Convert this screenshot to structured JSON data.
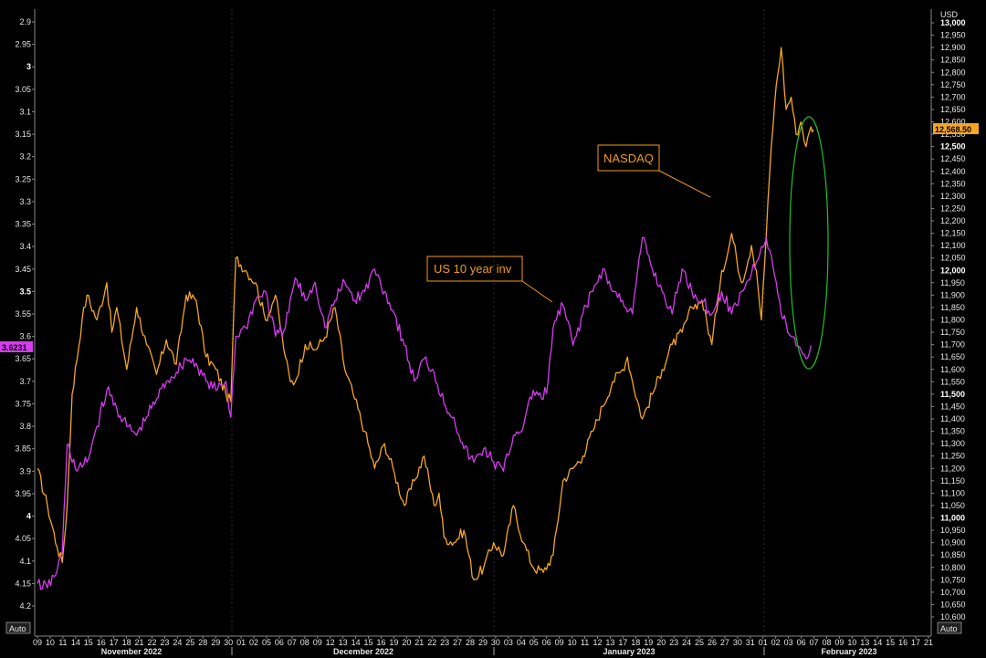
{
  "chart_data": {
    "type": "line",
    "title": "",
    "left_axis": {
      "label": "",
      "min": 2.88,
      "max": 4.22,
      "inverted": true,
      "ticks": [
        "2.9",
        "2.95",
        "3",
        "3.05",
        "3.1",
        "3.15",
        "3.2",
        "3.25",
        "3.3",
        "3.35",
        "3.4",
        "3.45",
        "3.5",
        "3.55",
        "3.6",
        "3.65",
        "3.7",
        "3.75",
        "3.8",
        "3.85",
        "3.9",
        "3.95",
        "4",
        "4.05",
        "4.1",
        "4.15",
        "4.2"
      ],
      "bold_ticks": [
        "3",
        "3.5",
        "4"
      ],
      "current_value_label": "3.6231",
      "current_value": 3.6231,
      "scale_button": "Auto"
    },
    "right_axis": {
      "unit": "USD",
      "min": 10570,
      "max": 13020,
      "ticks": [
        "13,000",
        "12,950",
        "12,900",
        "12,850",
        "12,800",
        "12,750",
        "12,700",
        "12,650",
        "12,600",
        "12,550",
        "12,500",
        "12,450",
        "12,400",
        "12,350",
        "12,300",
        "12,250",
        "12,200",
        "12,150",
        "12,100",
        "12,050",
        "12,000",
        "11,950",
        "11,900",
        "11,850",
        "11,800",
        "11,750",
        "11,700",
        "11,650",
        "11,600",
        "11,550",
        "11,500",
        "11,450",
        "11,400",
        "11,350",
        "11,300",
        "11,250",
        "11,200",
        "11,150",
        "11,100",
        "11,050",
        "11,000",
        "10,950",
        "10,900",
        "10,850",
        "10,800",
        "10,750",
        "10,700",
        "10,650",
        "10,600"
      ],
      "bold_ticks": [
        "13,000",
        "12,500",
        "12,000",
        "11,500",
        "11,000"
      ],
      "current_value_label": "12,568.50",
      "current_value": 12568.5,
      "scale_button": "Auto"
    },
    "x_axis": {
      "day_ticks": [
        "09",
        "10",
        "11",
        "14",
        "15",
        "16",
        "17",
        "18",
        "21",
        "22",
        "23",
        "24",
        "25",
        "28",
        "29",
        "30",
        "01",
        "02",
        "05",
        "06",
        "07",
        "08",
        "09",
        "12",
        "13",
        "14",
        "15",
        "16",
        "19",
        "20",
        "21",
        "22",
        "23",
        "27",
        "28",
        "29",
        "30",
        "03",
        "04",
        "05",
        "06",
        "09",
        "10",
        "11",
        "12",
        "13",
        "17",
        "18",
        "19",
        "20",
        "23",
        "24",
        "25",
        "26",
        "27",
        "30",
        "31",
        "01",
        "02",
        "03",
        "06",
        "07",
        "08",
        "09",
        "10",
        "13",
        "14",
        "15",
        "16",
        "17",
        "21"
      ],
      "months": [
        "November 2022",
        "December 2022",
        "January 2023",
        "February 2023"
      ]
    },
    "series": [
      {
        "name": "NASDAQ",
        "color": "#f5a623",
        "axis": "right",
        "points": [
          [
            0,
            11200
          ],
          [
            2,
            11050
          ],
          [
            4,
            10880
          ],
          [
            5,
            10820
          ],
          [
            6,
            11050
          ],
          [
            7,
            11500
          ],
          [
            9,
            11800
          ],
          [
            10,
            11900
          ],
          [
            12,
            11800
          ],
          [
            14,
            11950
          ],
          [
            15,
            11750
          ],
          [
            16,
            11850
          ],
          [
            18,
            11600
          ],
          [
            20,
            11850
          ],
          [
            22,
            11700
          ],
          [
            24,
            11580
          ],
          [
            26,
            11720
          ],
          [
            28,
            11620
          ],
          [
            30,
            11900
          ],
          [
            32,
            11880
          ],
          [
            34,
            11650
          ],
          [
            36,
            11600
          ],
          [
            38,
            11500
          ],
          [
            39,
            11470
          ],
          [
            40,
            12050
          ],
          [
            42,
            12000
          ],
          [
            44,
            11950
          ],
          [
            46,
            11800
          ],
          [
            48,
            11900
          ],
          [
            50,
            11650
          ],
          [
            51,
            11550
          ],
          [
            52,
            11550
          ],
          [
            54,
            11700
          ],
          [
            56,
            11680
          ],
          [
            58,
            11730
          ],
          [
            60,
            11850
          ],
          [
            62,
            11600
          ],
          [
            64,
            11480
          ],
          [
            66,
            11350
          ],
          [
            68,
            11200
          ],
          [
            70,
            11300
          ],
          [
            72,
            11180
          ],
          [
            74,
            11050
          ],
          [
            76,
            11150
          ],
          [
            78,
            11250
          ],
          [
            80,
            11050
          ],
          [
            81,
            11100
          ],
          [
            82,
            10920
          ],
          [
            84,
            10900
          ],
          [
            86,
            10950
          ],
          [
            88,
            10750
          ],
          [
            90,
            10800
          ],
          [
            92,
            10900
          ],
          [
            94,
            10850
          ],
          [
            96,
            11050
          ],
          [
            98,
            10900
          ],
          [
            100,
            10800
          ],
          [
            102,
            10780
          ],
          [
            104,
            10850
          ],
          [
            106,
            11150
          ],
          [
            108,
            11200
          ],
          [
            110,
            11250
          ],
          [
            112,
            11350
          ],
          [
            114,
            11450
          ],
          [
            116,
            11550
          ],
          [
            118,
            11600
          ],
          [
            119,
            11650
          ],
          [
            120,
            11550
          ],
          [
            122,
            11400
          ],
          [
            124,
            11500
          ],
          [
            126,
            11600
          ],
          [
            128,
            11700
          ],
          [
            130,
            11750
          ],
          [
            132,
            11850
          ],
          [
            134,
            11880
          ],
          [
            136,
            11700
          ],
          [
            138,
            12000
          ],
          [
            139,
            12050
          ],
          [
            140,
            12150
          ],
          [
            141,
            12050
          ],
          [
            142,
            11950
          ],
          [
            144,
            12100
          ],
          [
            145,
            12000
          ],
          [
            146,
            11800
          ],
          [
            148,
            12500
          ],
          [
            149,
            12750
          ],
          [
            150,
            12900
          ],
          [
            151,
            12650
          ],
          [
            152,
            12700
          ],
          [
            153,
            12550
          ],
          [
            154,
            12600
          ],
          [
            155,
            12500
          ],
          [
            156,
            12580
          ],
          [
            156.5,
            12568.5
          ]
        ]
      },
      {
        "name": "US 10 year inv",
        "color": "#d63cf0",
        "axis": "left",
        "points": [
          [
            0,
            4.15
          ],
          [
            2,
            4.16
          ],
          [
            4,
            4.12
          ],
          [
            5,
            4.08
          ],
          [
            6,
            3.84
          ],
          [
            8,
            3.9
          ],
          [
            10,
            3.88
          ],
          [
            12,
            3.8
          ],
          [
            14,
            3.72
          ],
          [
            16,
            3.76
          ],
          [
            18,
            3.8
          ],
          [
            20,
            3.82
          ],
          [
            22,
            3.78
          ],
          [
            24,
            3.74
          ],
          [
            26,
            3.7
          ],
          [
            28,
            3.68
          ],
          [
            30,
            3.65
          ],
          [
            32,
            3.66
          ],
          [
            34,
            3.7
          ],
          [
            36,
            3.72
          ],
          [
            38,
            3.7
          ],
          [
            39,
            3.78
          ],
          [
            40,
            3.6
          ],
          [
            42,
            3.58
          ],
          [
            44,
            3.52
          ],
          [
            46,
            3.5
          ],
          [
            48,
            3.6
          ],
          [
            50,
            3.58
          ],
          [
            52,
            3.47
          ],
          [
            54,
            3.52
          ],
          [
            56,
            3.48
          ],
          [
            58,
            3.58
          ],
          [
            60,
            3.52
          ],
          [
            62,
            3.48
          ],
          [
            64,
            3.52
          ],
          [
            66,
            3.5
          ],
          [
            68,
            3.45
          ],
          [
            70,
            3.5
          ],
          [
            72,
            3.55
          ],
          [
            74,
            3.62
          ],
          [
            76,
            3.7
          ],
          [
            78,
            3.65
          ],
          [
            80,
            3.68
          ],
          [
            82,
            3.75
          ],
          [
            84,
            3.78
          ],
          [
            86,
            3.85
          ],
          [
            88,
            3.88
          ],
          [
            90,
            3.85
          ],
          [
            92,
            3.88
          ],
          [
            94,
            3.9
          ],
          [
            96,
            3.82
          ],
          [
            98,
            3.8
          ],
          [
            100,
            3.72
          ],
          [
            102,
            3.74
          ],
          [
            103,
            3.7
          ],
          [
            104,
            3.58
          ],
          [
            106,
            3.53
          ],
          [
            108,
            3.62
          ],
          [
            110,
            3.55
          ],
          [
            112,
            3.5
          ],
          [
            114,
            3.45
          ],
          [
            116,
            3.5
          ],
          [
            118,
            3.52
          ],
          [
            120,
            3.55
          ],
          [
            122,
            3.38
          ],
          [
            124,
            3.45
          ],
          [
            126,
            3.5
          ],
          [
            128,
            3.55
          ],
          [
            130,
            3.45
          ],
          [
            132,
            3.5
          ],
          [
            134,
            3.52
          ],
          [
            136,
            3.55
          ],
          [
            138,
            3.5
          ],
          [
            140,
            3.55
          ],
          [
            142,
            3.5
          ],
          [
            144,
            3.46
          ],
          [
            146,
            3.4
          ],
          [
            147,
            3.38
          ],
          [
            148,
            3.42
          ],
          [
            150,
            3.55
          ],
          [
            152,
            3.6
          ],
          [
            154,
            3.63
          ],
          [
            155,
            3.65
          ],
          [
            156,
            3.62
          ]
        ]
      }
    ],
    "annotations": [
      {
        "text": "NASDAQ",
        "callout_color": "#f39c12"
      },
      {
        "text": "US 10 year inv",
        "callout_color": "#f39c12"
      },
      {
        "shape": "ellipse",
        "color": "#1fbf2f",
        "around": "latest data"
      }
    ]
  }
}
